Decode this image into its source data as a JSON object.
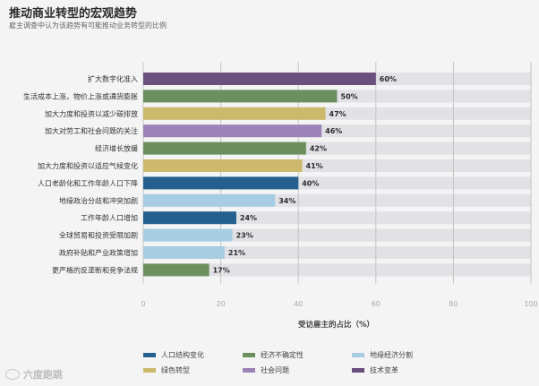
{
  "title": "推动商业转型的宏观趋势",
  "subtitle": "雇主调查中认为该趋势有可能推动业务转型的比例",
  "watermark": "六度跑跳",
  "colors": {
    "demographic": "#23608f",
    "economic": "#6b8f5e",
    "geoeconomic": "#a7cde2",
    "green": "#cdb96b",
    "social": "#9c82b6",
    "tech": "#6a4f7f",
    "track": "#e2e1e6",
    "grid": "#c4c4c4"
  },
  "chart_data": {
    "type": "bar",
    "orientation": "horizontal",
    "xlabel": "受访雇主的占比（%）",
    "xlim": [
      0,
      100
    ],
    "xticks": [
      0,
      20,
      40,
      60,
      80,
      100
    ],
    "categories": [
      "扩大数字化准入",
      "生活成本上涨，物价上涨或通货膨胀",
      "加大力度和投资以减少碳排放",
      "加大对劳工和社会问题的关注",
      "经济增长放缓",
      "加大力度和投资以适应气候变化",
      "人口老龄化和工作年龄人口下降",
      "地缘政治分歧和冲突加剧",
      "工作年龄人口增加",
      "全球贸易和投资受限加剧",
      "政府补贴和产业政策增加",
      "更严格的反垄断和竞争法规"
    ],
    "values": [
      60,
      50,
      47,
      46,
      42,
      41,
      40,
      34,
      24,
      23,
      21,
      17
    ],
    "value_labels": [
      "60%",
      "50%",
      "47%",
      "46%",
      "42%",
      "41%",
      "40%",
      "34%",
      "24%",
      "23%",
      "21%",
      "17%"
    ],
    "groups": [
      "tech",
      "economic",
      "green",
      "social",
      "economic",
      "green",
      "demographic",
      "geoeconomic",
      "demographic",
      "geoeconomic",
      "geoeconomic",
      "economic"
    ],
    "legend": [
      {
        "key": "demographic",
        "label": "人口结构变化"
      },
      {
        "key": "economic",
        "label": "经济不确定性"
      },
      {
        "key": "geoeconomic",
        "label": "地缘经济分割"
      },
      {
        "key": "green",
        "label": "绿色转型"
      },
      {
        "key": "social",
        "label": "社会问题"
      },
      {
        "key": "tech",
        "label": "技术变革"
      }
    ],
    "legend_position": "bottom",
    "grid": true
  }
}
